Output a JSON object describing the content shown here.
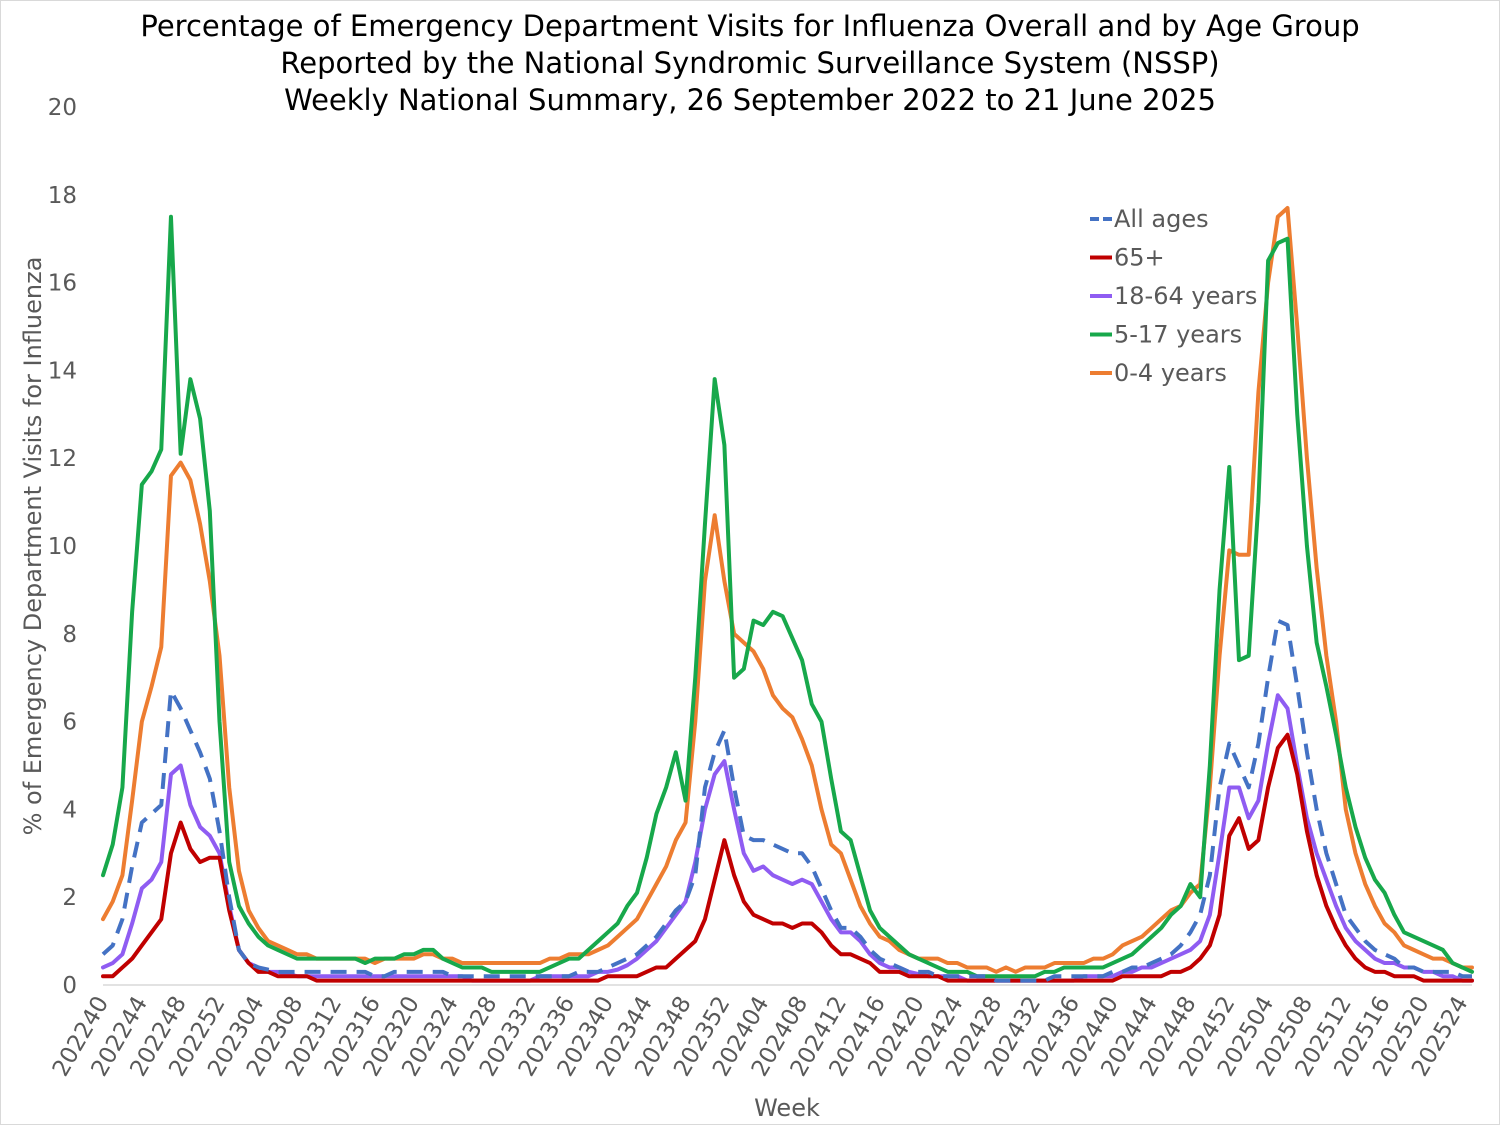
{
  "chart_data": {
    "type": "line",
    "title": [
      "Percentage of Emergency Department Visits for Influenza Overall and by Age Group",
      "Reported by the National Syndromic Surveillance System (NSSP)",
      "Weekly National Summary, 26 September 2022 to 21 June 2025"
    ],
    "x_label": "Week",
    "y_label": "% of Emergency Department Visits for Influenza",
    "ylim": [
      0,
      20
    ],
    "yticks": [
      0,
      2,
      4,
      6,
      8,
      10,
      12,
      14,
      16,
      18,
      20
    ],
    "legend": "top-right",
    "categories": [
      "202240",
      null,
      null,
      null,
      "202244",
      null,
      null,
      null,
      "202248",
      null,
      null,
      null,
      "202252",
      null,
      null,
      null,
      "202304",
      null,
      null,
      null,
      "202308",
      null,
      null,
      null,
      "202312",
      null,
      null,
      null,
      "202316",
      null,
      null,
      null,
      "202320",
      null,
      null,
      null,
      "202324",
      null,
      null,
      null,
      "202328",
      null,
      null,
      null,
      "202332",
      null,
      null,
      null,
      "202336",
      null,
      null,
      null,
      "202340",
      null,
      null,
      null,
      "202344",
      null,
      null,
      null,
      "202348",
      null,
      null,
      null,
      "202352",
      null,
      null,
      null,
      "202404",
      null,
      null,
      null,
      "202408",
      null,
      null,
      null,
      "202412",
      null,
      null,
      null,
      "202416",
      null,
      null,
      null,
      "202420",
      null,
      null,
      null,
      "202424",
      null,
      null,
      null,
      "202428",
      null,
      null,
      null,
      "202432",
      null,
      null,
      null,
      "202436",
      null,
      null,
      null,
      "202440",
      null,
      null,
      null,
      "202444",
      null,
      null,
      null,
      "202448",
      null,
      null,
      null,
      "202452",
      null,
      null,
      null,
      "202504",
      null,
      null,
      null,
      "202508",
      null,
      null,
      null,
      "202512",
      null,
      null,
      null,
      "202516",
      null,
      null,
      null,
      "202520",
      null,
      null,
      null,
      "202524",
      null
    ],
    "series": [
      {
        "name": "All ages",
        "color": "#4472c4",
        "dashed": true,
        "values": [
          0.7,
          0.9,
          1.5,
          2.7,
          3.7,
          3.9,
          4.1,
          6.7,
          6.3,
          5.8,
          5.3,
          4.7,
          3.5,
          2.0,
          0.8,
          0.5,
          0.4,
          0.35,
          0.3,
          0.3,
          0.3,
          0.3,
          0.3,
          0.3,
          0.3,
          0.3,
          0.3,
          0.3,
          0.2,
          0.2,
          0.3,
          0.3,
          0.3,
          0.3,
          0.3,
          0.3,
          0.2,
          0.2,
          0.2,
          0.2,
          0.2,
          0.2,
          0.2,
          0.2,
          0.2,
          0.2,
          0.2,
          0.2,
          0.2,
          0.3,
          0.3,
          0.3,
          0.4,
          0.5,
          0.6,
          0.7,
          0.9,
          1.1,
          1.4,
          1.7,
          1.9,
          2.5,
          4.5,
          5.3,
          5.8,
          4.5,
          3.4,
          3.3,
          3.3,
          3.2,
          3.1,
          3.0,
          3.0,
          2.7,
          2.2,
          1.7,
          1.3,
          1.3,
          1.1,
          0.8,
          0.6,
          0.5,
          0.4,
          0.3,
          0.3,
          0.3,
          0.2,
          0.2,
          0.2,
          0.2,
          0.2,
          0.2,
          0.1,
          0.1,
          0.1,
          0.1,
          0.1,
          0.1,
          0.2,
          0.2,
          0.2,
          0.2,
          0.2,
          0.2,
          0.3,
          0.3,
          0.4,
          0.4,
          0.5,
          0.6,
          0.7,
          0.9,
          1.2,
          1.6,
          2.5,
          4.5,
          5.5,
          5.0,
          4.5,
          5.5,
          7.0,
          8.3,
          8.2,
          6.8,
          5.3,
          4.0,
          3.0,
          2.3,
          1.6,
          1.3,
          1.0,
          0.8,
          0.7,
          0.6,
          0.4,
          0.4,
          0.3,
          0.3,
          0.3,
          0.3,
          0.2,
          0.2
        ]
      },
      {
        "name": "65+",
        "color": "#c00000",
        "values": [
          0.2,
          0.2,
          0.4,
          0.6,
          0.9,
          1.2,
          1.5,
          3.0,
          3.7,
          3.1,
          2.8,
          2.9,
          2.9,
          1.7,
          0.8,
          0.5,
          0.3,
          0.3,
          0.2,
          0.2,
          0.2,
          0.2,
          0.1,
          0.1,
          0.1,
          0.1,
          0.1,
          0.1,
          0.1,
          0.1,
          0.1,
          0.1,
          0.1,
          0.1,
          0.1,
          0.1,
          0.1,
          0.1,
          0.1,
          0.1,
          0.1,
          0.1,
          0.1,
          0.1,
          0.1,
          0.1,
          0.1,
          0.1,
          0.1,
          0.1,
          0.1,
          0.1,
          0.2,
          0.2,
          0.2,
          0.2,
          0.3,
          0.4,
          0.4,
          0.6,
          0.8,
          1.0,
          1.5,
          2.4,
          3.3,
          2.5,
          1.9,
          1.6,
          1.5,
          1.4,
          1.4,
          1.3,
          1.4,
          1.4,
          1.2,
          0.9,
          0.7,
          0.7,
          0.6,
          0.5,
          0.3,
          0.3,
          0.3,
          0.2,
          0.2,
          0.2,
          0.2,
          0.1,
          0.1,
          0.1,
          0.1,
          0.1,
          0.1,
          0.1,
          0.1,
          0.1,
          0.1,
          0.1,
          0.1,
          0.1,
          0.1,
          0.1,
          0.1,
          0.1,
          0.1,
          0.2,
          0.2,
          0.2,
          0.2,
          0.2,
          0.3,
          0.3,
          0.4,
          0.6,
          0.9,
          1.6,
          3.4,
          3.8,
          3.1,
          3.3,
          4.5,
          5.4,
          5.7,
          4.8,
          3.5,
          2.5,
          1.8,
          1.3,
          0.9,
          0.6,
          0.4,
          0.3,
          0.3,
          0.2,
          0.2,
          0.2,
          0.1,
          0.1,
          0.1,
          0.1,
          0.1,
          0.1
        ]
      },
      {
        "name": "18-64 years",
        "color": "#8f5cf2",
        "values": [
          0.4,
          0.5,
          0.7,
          1.4,
          2.2,
          2.4,
          2.8,
          4.8,
          5.0,
          4.1,
          3.6,
          3.4,
          3.0,
          1.8,
          0.8,
          0.5,
          0.4,
          0.3,
          0.3,
          0.25,
          0.2,
          0.2,
          0.2,
          0.2,
          0.2,
          0.2,
          0.2,
          0.2,
          0.2,
          0.2,
          0.2,
          0.2,
          0.2,
          0.2,
          0.2,
          0.2,
          0.2,
          0.2,
          0.1,
          0.1,
          0.1,
          0.1,
          0.1,
          0.1,
          0.1,
          0.2,
          0.2,
          0.2,
          0.2,
          0.2,
          0.2,
          0.3,
          0.3,
          0.35,
          0.45,
          0.6,
          0.8,
          1.0,
          1.3,
          1.6,
          1.9,
          2.8,
          4.0,
          4.8,
          5.1,
          4.0,
          3.0,
          2.6,
          2.7,
          2.5,
          2.4,
          2.3,
          2.4,
          2.3,
          1.9,
          1.5,
          1.2,
          1.2,
          1.0,
          0.7,
          0.5,
          0.4,
          0.4,
          0.3,
          0.25,
          0.2,
          0.2,
          0.2,
          0.2,
          0.1,
          0.1,
          0.1,
          0.1,
          0.1,
          0.1,
          0.1,
          0.1,
          0.1,
          0.1,
          0.1,
          0.1,
          0.2,
          0.2,
          0.2,
          0.2,
          0.3,
          0.3,
          0.4,
          0.4,
          0.5,
          0.6,
          0.7,
          0.8,
          1.0,
          1.6,
          3.0,
          4.5,
          4.5,
          3.8,
          4.2,
          5.5,
          6.6,
          6.3,
          5.0,
          3.8,
          3.0,
          2.4,
          1.8,
          1.3,
          1.0,
          0.8,
          0.6,
          0.5,
          0.5,
          0.4,
          0.4,
          0.3,
          0.3,
          0.2,
          0.2,
          0.1,
          0.1
        ]
      },
      {
        "name": "5-17 years",
        "color": "#17a84b",
        "values": [
          2.5,
          3.2,
          4.5,
          8.5,
          11.4,
          11.7,
          12.2,
          17.5,
          12.1,
          13.8,
          12.9,
          10.8,
          6.0,
          2.8,
          1.8,
          1.4,
          1.1,
          0.9,
          0.8,
          0.7,
          0.6,
          0.6,
          0.6,
          0.6,
          0.6,
          0.6,
          0.6,
          0.5,
          0.6,
          0.6,
          0.6,
          0.7,
          0.7,
          0.8,
          0.8,
          0.6,
          0.5,
          0.4,
          0.4,
          0.4,
          0.3,
          0.3,
          0.3,
          0.3,
          0.3,
          0.3,
          0.4,
          0.5,
          0.6,
          0.6,
          0.8,
          1.0,
          1.2,
          1.4,
          1.8,
          2.1,
          2.9,
          3.9,
          4.5,
          5.3,
          4.2,
          7.0,
          10.5,
          13.8,
          12.3,
          7.0,
          7.2,
          8.3,
          8.2,
          8.5,
          8.4,
          7.9,
          7.4,
          6.4,
          6.0,
          4.7,
          3.5,
          3.3,
          2.5,
          1.7,
          1.3,
          1.1,
          0.9,
          0.7,
          0.6,
          0.5,
          0.4,
          0.3,
          0.3,
          0.3,
          0.2,
          0.2,
          0.2,
          0.2,
          0.2,
          0.2,
          0.2,
          0.3,
          0.3,
          0.4,
          0.4,
          0.4,
          0.4,
          0.4,
          0.5,
          0.6,
          0.7,
          0.9,
          1.1,
          1.3,
          1.6,
          1.8,
          2.3,
          2.0,
          5.0,
          9.0,
          11.8,
          7.4,
          7.5,
          11.0,
          16.5,
          16.9,
          17.0,
          13.0,
          10.0,
          7.8,
          6.8,
          5.7,
          4.5,
          3.6,
          2.9,
          2.4,
          2.1,
          1.6,
          1.2,
          1.1,
          1.0,
          0.9,
          0.8,
          0.5,
          0.4,
          0.3
        ]
      },
      {
        "name": "0-4 years",
        "color": "#ed7d31",
        "values": [
          1.5,
          1.9,
          2.5,
          4.2,
          6.0,
          6.8,
          7.7,
          11.6,
          11.9,
          11.5,
          10.5,
          9.2,
          7.5,
          4.5,
          2.6,
          1.7,
          1.3,
          1.0,
          0.9,
          0.8,
          0.7,
          0.7,
          0.6,
          0.6,
          0.6,
          0.6,
          0.6,
          0.6,
          0.5,
          0.6,
          0.6,
          0.6,
          0.6,
          0.7,
          0.7,
          0.6,
          0.6,
          0.5,
          0.5,
          0.5,
          0.5,
          0.5,
          0.5,
          0.5,
          0.5,
          0.5,
          0.6,
          0.6,
          0.7,
          0.7,
          0.7,
          0.8,
          0.9,
          1.1,
          1.3,
          1.5,
          1.9,
          2.3,
          2.7,
          3.3,
          3.7,
          6.0,
          9.2,
          10.7,
          9.2,
          8.0,
          7.8,
          7.6,
          7.2,
          6.6,
          6.3,
          6.1,
          5.6,
          5.0,
          4.0,
          3.2,
          3.0,
          2.4,
          1.8,
          1.4,
          1.1,
          1.0,
          0.8,
          0.7,
          0.6,
          0.6,
          0.6,
          0.5,
          0.5,
          0.4,
          0.4,
          0.4,
          0.3,
          0.4,
          0.3,
          0.4,
          0.4,
          0.4,
          0.5,
          0.5,
          0.5,
          0.5,
          0.6,
          0.6,
          0.7,
          0.9,
          1.0,
          1.1,
          1.3,
          1.5,
          1.7,
          1.8,
          2.1,
          2.3,
          4.5,
          7.5,
          9.9,
          9.8,
          9.8,
          13.5,
          16.0,
          17.5,
          17.7,
          15.0,
          12.0,
          9.5,
          7.5,
          6.0,
          4.0,
          3.0,
          2.3,
          1.8,
          1.4,
          1.2,
          0.9,
          0.8,
          0.7,
          0.6,
          0.6,
          0.5,
          0.4,
          0.4
        ]
      }
    ]
  }
}
